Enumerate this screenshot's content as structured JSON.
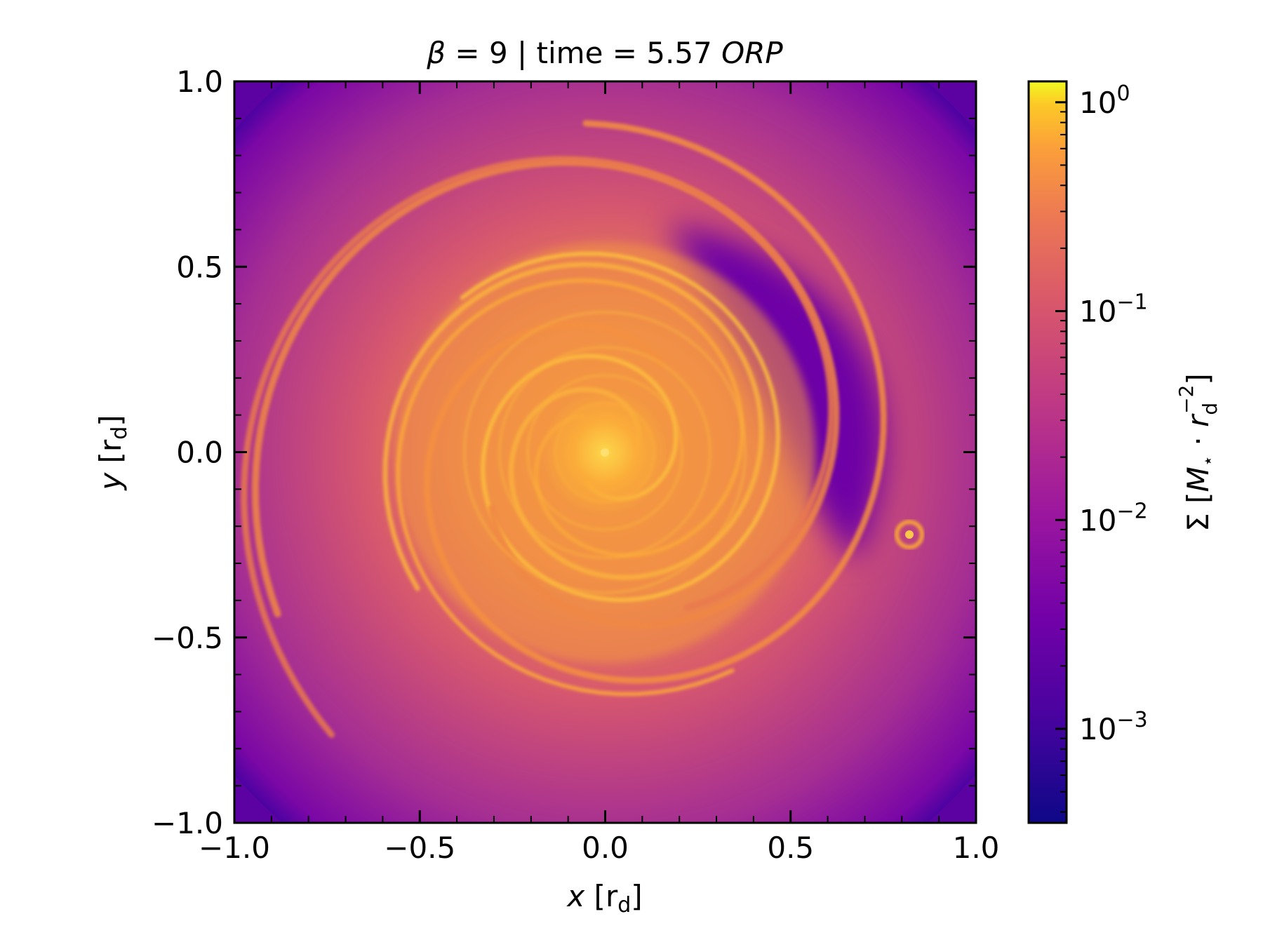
{
  "chart_data": {
    "type": "heatmap",
    "title": "β = 9 | time = 5.57 ORP",
    "title_parts": {
      "lhs": "β",
      "middle": " = 9 | time = 5.57 ",
      "unit": "ORP"
    },
    "xlabel": "x [r_d]",
    "xlabel_parts": {
      "var": "x",
      "unit_open": " [r",
      "unit_sub": "d",
      "unit_close": "]"
    },
    "ylabel": "y [r_d]",
    "ylabel_parts": {
      "var": "y",
      "unit_open": " [r",
      "unit_sub": "d",
      "unit_close": "]"
    },
    "xlim": [
      -1.0,
      1.0
    ],
    "ylim": [
      -1.0,
      1.0
    ],
    "x_ticks": [
      -1.0,
      -0.5,
      0.0,
      0.5,
      1.0
    ],
    "x_tick_labels": [
      "−1.0",
      "−0.5",
      "0.0",
      "0.5",
      "1.0"
    ],
    "y_ticks": [
      1.0,
      0.5,
      0.0,
      -0.5,
      -1.0
    ],
    "y_tick_labels": [
      "1.0",
      "0.5",
      "0.0",
      "−0.5",
      "−1.0"
    ],
    "minor_tick_step": 0.1,
    "colormap": "plasma",
    "colorbar": {
      "label": "Σ [M⋆ · r_d^-2]",
      "label_parts": {
        "sym": "Σ",
        "open": " [",
        "M": "M",
        "Msub": "⋆",
        "dot": " · ",
        "r": "r",
        "rsub": "d",
        "rsup": "−2",
        "close": "]"
      },
      "scale": "log",
      "vmin_log10": -3.45,
      "vmax_log10": 0.1,
      "ticks_log10": [
        0,
        -1,
        -2,
        -3
      ],
      "tick_labels": [
        {
          "base": "10",
          "exp": "0"
        },
        {
          "base": "10",
          "exp": "−1"
        },
        {
          "base": "10",
          "exp": "−2"
        },
        {
          "base": "10",
          "exp": "−3"
        }
      ]
    },
    "features": {
      "center": [
        0.0,
        0.0
      ],
      "clump": [
        0.82,
        -0.22
      ],
      "dark_gap": "upper-right crescent"
    },
    "colors": {
      "stop_0": "#0d0887",
      "stop_1": "#6a00a8",
      "stop_2": "#b12a90",
      "stop_3": "#e16462",
      "stop_4": "#fca636",
      "stop_5": "#f0f921"
    }
  }
}
